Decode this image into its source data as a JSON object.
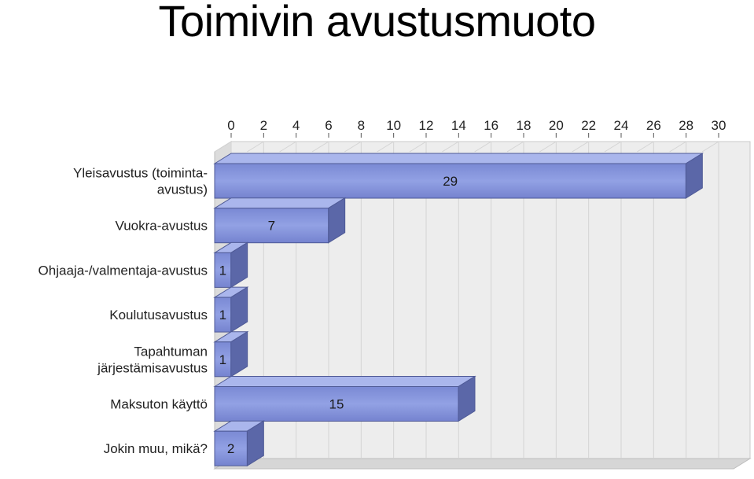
{
  "title": "Toimivin avustusmuoto",
  "chart_data": {
    "type": "bar",
    "orientation": "horizontal",
    "title": "Toimivin avustusmuoto",
    "categories": [
      [
        "Yleisavustus (toiminta-",
        "avustus)"
      ],
      [
        "Vuokra-avustus"
      ],
      [
        "Ohjaaja-/valmentaja-avustus"
      ],
      [
        "Koulutusavustus"
      ],
      [
        "Tapahtuman",
        "järjestämisavustus"
      ],
      [
        "Maksuton käyttö"
      ],
      [
        "Jokin muu, mikä?"
      ]
    ],
    "values": [
      29,
      7,
      1,
      1,
      1,
      15,
      2
    ],
    "xlim": [
      0,
      30
    ],
    "ticks": [
      "0",
      "2",
      "4",
      "6",
      "8",
      "10",
      "12",
      "14",
      "16",
      "18",
      "20",
      "22",
      "24",
      "26",
      "28",
      "30"
    ],
    "axis_position": "top",
    "grid": true,
    "colors": {
      "bar_front": "#8796de",
      "bar_top": "#aab6ec",
      "bar_side": "#5b67a8",
      "bar_edge": "#4f5a96",
      "grid": "#d4d4d4",
      "wall": "#ededed"
    }
  }
}
